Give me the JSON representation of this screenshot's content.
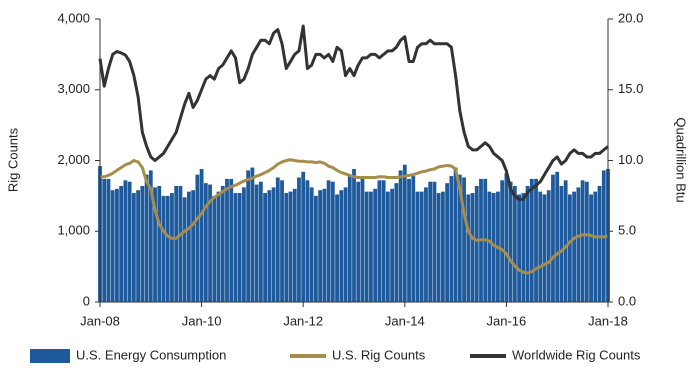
{
  "chart_data": {
    "type": "bar-line",
    "y_label": "Rig Counts",
    "y2_label": "Quadrillion Btu",
    "categories": [
      "Jan-08",
      null,
      null,
      null,
      null,
      null,
      null,
      null,
      null,
      null,
      null,
      null,
      null,
      null,
      null,
      null,
      null,
      null,
      null,
      null,
      null,
      null,
      null,
      null,
      "Jan-10",
      null,
      null,
      null,
      null,
      null,
      null,
      null,
      null,
      null,
      null,
      null,
      null,
      null,
      null,
      null,
      null,
      null,
      null,
      null,
      null,
      null,
      null,
      null,
      "Jan-12",
      null,
      null,
      null,
      null,
      null,
      null,
      null,
      null,
      null,
      null,
      null,
      null,
      null,
      null,
      null,
      null,
      null,
      null,
      null,
      null,
      null,
      null,
      null,
      "Jan-14",
      null,
      null,
      null,
      null,
      null,
      null,
      null,
      null,
      null,
      null,
      null,
      null,
      null,
      null,
      null,
      null,
      null,
      null,
      null,
      null,
      null,
      null,
      null,
      "Jan-16",
      null,
      null,
      null,
      null,
      null,
      null,
      null,
      null,
      null,
      null,
      null,
      null,
      null,
      null,
      null,
      null,
      null,
      null,
      null,
      null,
      null,
      null,
      null,
      "Jan-18"
    ],
    "series": [
      {
        "name": "U.S. Energy Consumption",
        "type": "bar",
        "axis": "y2",
        "color": "#1f5b9c",
        "values": [
          9.6,
          8.7,
          8.7,
          7.9,
          8.0,
          8.2,
          8.6,
          8.5,
          7.7,
          7.9,
          8.2,
          9.0,
          9.3,
          8.1,
          8.2,
          7.5,
          7.5,
          7.7,
          8.2,
          8.2,
          7.4,
          7.8,
          7.9,
          9.0,
          9.4,
          8.4,
          8.3,
          7.5,
          7.8,
          8.2,
          8.7,
          8.7,
          7.7,
          7.7,
          8.1,
          9.3,
          9.5,
          8.3,
          8.5,
          7.7,
          7.9,
          8.1,
          8.8,
          8.6,
          7.7,
          7.8,
          8.0,
          8.8,
          9.2,
          8.6,
          8.1,
          7.5,
          7.9,
          8.0,
          8.6,
          8.5,
          7.6,
          7.9,
          8.1,
          8.9,
          9.4,
          8.5,
          8.9,
          7.8,
          7.8,
          8.0,
          8.6,
          8.6,
          7.8,
          8.0,
          8.4,
          9.3,
          9.7,
          8.7,
          8.9,
          7.8,
          7.8,
          8.1,
          8.5,
          8.5,
          7.7,
          7.8,
          8.4,
          8.9,
          9.5,
          9.0,
          8.8,
          7.6,
          7.7,
          8.2,
          8.7,
          8.7,
          7.8,
          7.7,
          7.8,
          8.6,
          9.1,
          8.5,
          8.2,
          7.6,
          7.7,
          8.2,
          8.7,
          8.7,
          7.8,
          7.6,
          7.9,
          9.0,
          9.2,
          8.2,
          8.6,
          7.6,
          7.8,
          8.1,
          8.6,
          8.5,
          7.6,
          7.8,
          8.2,
          9.3,
          9.4
        ]
      },
      {
        "name": "U.S. Rig Counts",
        "type": "line",
        "axis": "y",
        "color": "#a68d4b",
        "values": [
          1770,
          1770,
          1790,
          1820,
          1860,
          1900,
          1940,
          1960,
          2000,
          1980,
          1900,
          1700,
          1600,
          1300,
          1100,
          1000,
          930,
          900,
          900,
          950,
          1000,
          1040,
          1100,
          1180,
          1250,
          1350,
          1420,
          1480,
          1520,
          1560,
          1600,
          1630,
          1650,
          1680,
          1710,
          1730,
          1750,
          1780,
          1800,
          1830,
          1860,
          1900,
          1950,
          1980,
          2000,
          2010,
          2000,
          1990,
          1990,
          1980,
          1980,
          1970,
          1980,
          1960,
          1920,
          1900,
          1860,
          1830,
          1810,
          1790,
          1770,
          1760,
          1760,
          1760,
          1760,
          1760,
          1770,
          1770,
          1760,
          1760,
          1760,
          1770,
          1780,
          1790,
          1800,
          1820,
          1840,
          1850,
          1870,
          1880,
          1910,
          1920,
          1930,
          1920,
          1880,
          1600,
          1250,
          1000,
          900,
          870,
          880,
          880,
          860,
          800,
          770,
          740,
          680,
          580,
          510,
          450,
          420,
          410,
          430,
          470,
          500,
          530,
          560,
          630,
          680,
          720,
          780,
          850,
          900,
          930,
          950,
          950,
          940,
          920,
          920,
          920,
          930
        ]
      },
      {
        "name": "Worldwide Rig Counts",
        "type": "line",
        "axis": "y",
        "color": "#333333",
        "values": [
          3440,
          3050,
          3300,
          3500,
          3540,
          3520,
          3490,
          3400,
          3200,
          2900,
          2400,
          2200,
          2050,
          2000,
          2050,
          2100,
          2200,
          2300,
          2400,
          2600,
          2800,
          2950,
          2750,
          2850,
          3000,
          3150,
          3200,
          3150,
          3300,
          3350,
          3450,
          3550,
          3450,
          3100,
          3150,
          3300,
          3500,
          3600,
          3700,
          3700,
          3650,
          3800,
          3850,
          3650,
          3300,
          3400,
          3500,
          3550,
          3900,
          3300,
          3350,
          3500,
          3500,
          3450,
          3500,
          3400,
          3600,
          3550,
          3200,
          3300,
          3200,
          3350,
          3450,
          3450,
          3500,
          3500,
          3450,
          3500,
          3550,
          3550,
          3600,
          3700,
          3750,
          3400,
          3400,
          3600,
          3650,
          3650,
          3700,
          3650,
          3650,
          3650,
          3650,
          3600,
          3200,
          2700,
          2400,
          2200,
          2150,
          2150,
          2200,
          2250,
          2200,
          2100,
          2050,
          2000,
          1850,
          1600,
          1500,
          1450,
          1450,
          1550,
          1600,
          1650,
          1700,
          1800,
          1900,
          2000,
          2050,
          1950,
          2000,
          2100,
          2150,
          2100,
          2100,
          2050,
          2050,
          2100,
          2100,
          2150,
          2200
        ]
      }
    ],
    "ylim": [
      0,
      4000
    ],
    "yticks": [
      0,
      {
        "value": 1000,
        "label": "1,000"
      },
      {
        "value": 2000,
        "label": "2,000"
      },
      {
        "value": 3000,
        "label": "3,000"
      },
      {
        "value": 4000,
        "label": "4,000"
      }
    ],
    "y2lim": [
      0,
      20
    ],
    "y2ticks": [
      {
        "value": 0,
        "label": "0.0"
      },
      {
        "value": 5,
        "label": "5.0"
      },
      {
        "value": 10,
        "label": "10.0"
      },
      {
        "value": 15,
        "label": "15.0"
      },
      {
        "value": 20,
        "label": "20.0"
      }
    ],
    "legend": "bottom"
  }
}
